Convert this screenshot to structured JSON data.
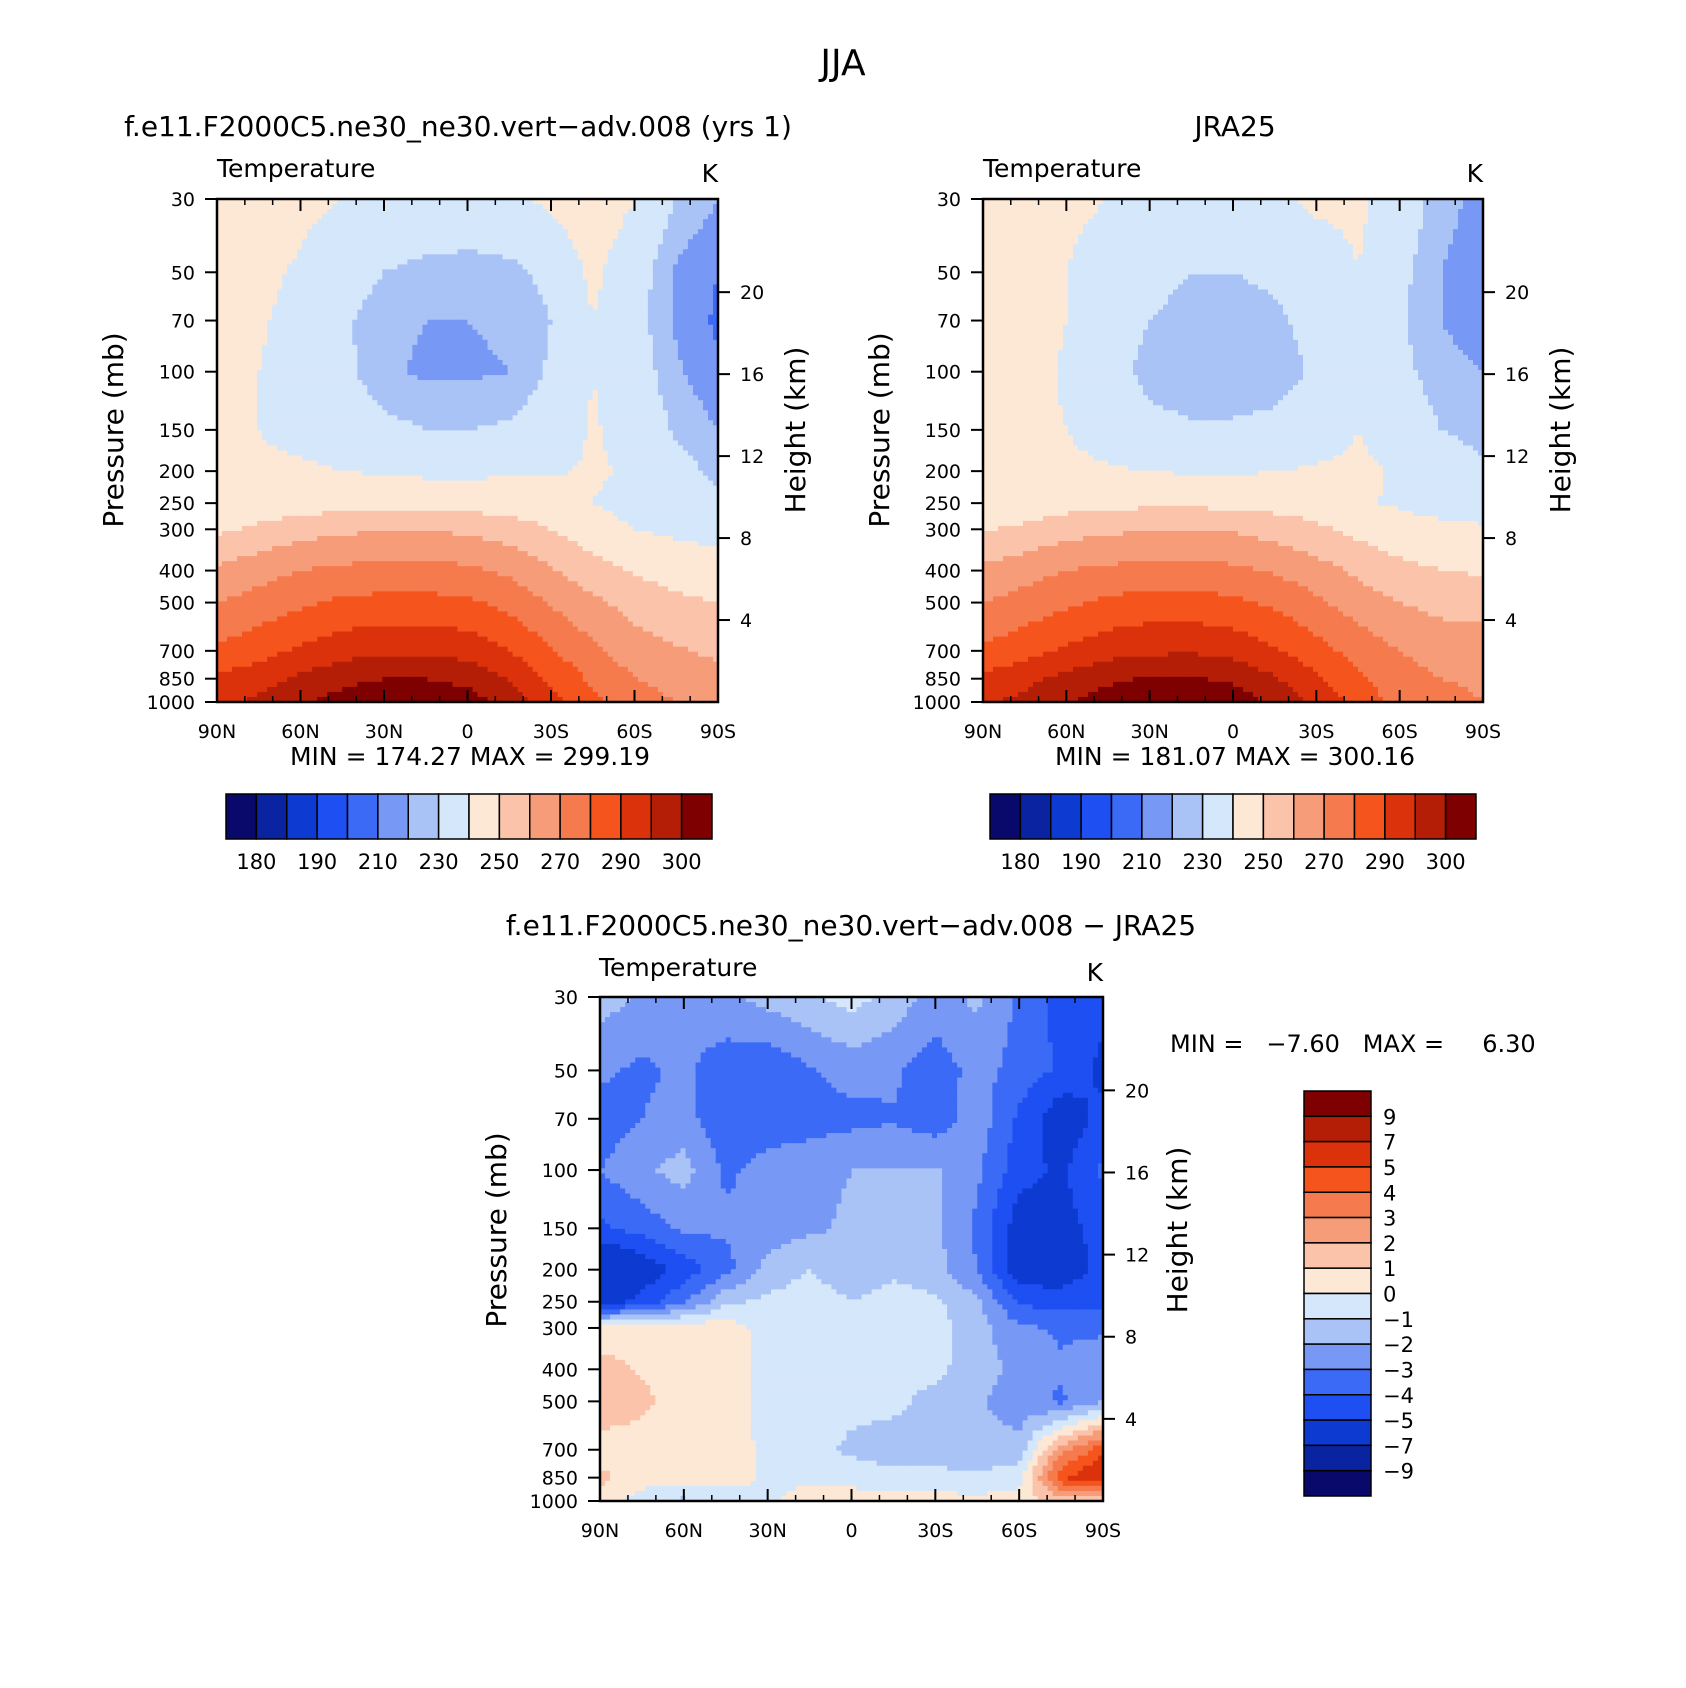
{
  "figure_title": "JJA",
  "panels": [
    {
      "title": "f.e11.F2000C5.ne30_ne30.vert−adv.008 (yrs 1)",
      "var_label": "Temperature",
      "units": "K",
      "ylabel": "Pressure (mb)",
      "y2label": "Height (km)",
      "minmax": "MIN =  174.27   MAX =  299.19"
    },
    {
      "title": "JRA25",
      "var_label": "Temperature",
      "units": "K",
      "ylabel": "Pressure (mb)",
      "y2label": "Height (km)",
      "minmax": "MIN =  181.07   MAX =  300.16"
    },
    {
      "title": "f.e11.F2000C5.ne30_ne30.vert−adv.008 − JRA25",
      "var_label": "Temperature",
      "units": "K",
      "ylabel": "Pressure (mb)",
      "y2label": "Height (km)",
      "minmax": "MIN =   −7.60   MAX =     6.30"
    }
  ],
  "chart_data": [
    {
      "type": "heatmap",
      "title": "f.e11.F2000C5.ne30_ne30.vert−adv.008 (yrs 1)",
      "subtitle": "Temperature",
      "units": "K",
      "ylabel": "Pressure (mb)",
      "y2label": "Height (km)",
      "x_ticks": [
        "90N",
        "60N",
        "30N",
        "0",
        "30S",
        "60S",
        "90S"
      ],
      "x_lat": [
        90,
        60,
        30,
        0,
        -30,
        -60,
        -90
      ],
      "y_ticks": [
        30,
        50,
        70,
        100,
        150,
        200,
        250,
        300,
        400,
        500,
        700,
        850,
        1000
      ],
      "y2_ticks": [
        4,
        8,
        12,
        16,
        20
      ],
      "ylim": [
        1000,
        30
      ],
      "y_scale": "log",
      "min": 174.27,
      "max": 299.19,
      "levels": [
        180,
        185,
        190,
        195,
        200,
        205,
        210,
        220,
        230,
        240,
        250,
        260,
        270,
        280,
        290,
        295,
        300
      ],
      "colorbar_labels": [
        180,
        190,
        210,
        230,
        250,
        270,
        290,
        300
      ],
      "field": {
        "lat": [
          90,
          75,
          60,
          45,
          30,
          15,
          0,
          -15,
          -30,
          -45,
          -60,
          -75,
          -90
        ],
        "plev": [
          30,
          50,
          70,
          100,
          150,
          200,
          250,
          300,
          400,
          500,
          700,
          850,
          1000
        ],
        "values": [
          [
            225,
            224,
            222,
            220,
            218,
            217,
            217,
            218,
            222,
            226,
            220,
            210,
            205
          ],
          [
            224,
            222,
            219,
            214,
            210,
            208,
            207,
            208,
            212,
            222,
            214,
            204,
            200
          ],
          [
            222,
            221,
            217,
            211,
            207,
            205,
            205,
            206,
            210,
            220,
            213,
            204,
            199
          ],
          [
            221,
            220,
            217,
            212,
            206,
            204,
            204,
            205,
            211,
            220,
            214,
            206,
            201
          ],
          [
            221,
            220,
            218,
            216,
            212,
            210,
            210,
            211,
            214,
            221,
            216,
            209,
            205
          ],
          [
            220,
            221,
            221,
            220,
            219,
            218,
            218,
            219,
            219,
            221,
            219,
            213,
            208
          ],
          [
            221,
            223,
            225,
            226,
            227,
            227,
            226,
            225,
            224,
            220,
            217,
            214,
            212
          ],
          [
            228,
            232,
            236,
            238,
            240,
            240,
            238,
            235,
            230,
            224,
            220,
            218,
            216
          ],
          [
            242,
            246,
            250,
            252,
            253,
            253,
            252,
            248,
            241,
            234,
            229,
            226,
            225
          ],
          [
            250,
            254,
            258,
            262,
            263,
            263,
            262,
            257,
            249,
            242,
            236,
            232,
            230
          ],
          [
            262,
            266,
            272,
            276,
            278,
            278,
            276,
            270,
            261,
            252,
            245,
            241,
            238
          ],
          [
            272,
            276,
            282,
            287,
            290,
            290,
            287,
            280,
            268,
            258,
            250,
            246,
            244
          ],
          [
            278,
            282,
            288,
            294,
            298,
            298,
            295,
            286,
            273,
            262,
            255,
            250,
            248
          ]
        ]
      }
    },
    {
      "type": "heatmap",
      "title": "JRA25",
      "subtitle": "Temperature",
      "units": "K",
      "ylabel": "Pressure (mb)",
      "y2label": "Height (km)",
      "x_ticks": [
        "90N",
        "60N",
        "30N",
        "0",
        "30S",
        "60S",
        "90S"
      ],
      "x_lat": [
        90,
        60,
        30,
        0,
        -30,
        -60,
        -90
      ],
      "y_ticks": [
        30,
        50,
        70,
        100,
        150,
        200,
        250,
        300,
        400,
        500,
        700,
        850,
        1000
      ],
      "y2_ticks": [
        4,
        8,
        12,
        16,
        20
      ],
      "ylim": [
        1000,
        30
      ],
      "y_scale": "log",
      "min": 181.07,
      "max": 300.16,
      "levels": [
        180,
        185,
        190,
        195,
        200,
        205,
        210,
        220,
        230,
        240,
        250,
        260,
        270,
        280,
        290,
        295,
        300
      ],
      "colorbar_labels": [
        180,
        190,
        210,
        230,
        250,
        270,
        290,
        300
      ],
      "field": {
        "lat": [
          90,
          75,
          60,
          45,
          30,
          15,
          0,
          -15,
          -30,
          -45,
          -60,
          -75,
          -90
        ],
        "plev": [
          30,
          50,
          70,
          100,
          150,
          200,
          250,
          300,
          400,
          500,
          700,
          850,
          1000
        ],
        "values": [
          [
            225,
            224,
            222,
            220,
            218,
            217,
            217,
            218,
            222,
            222,
            215,
            207,
            203
          ],
          [
            225,
            224,
            220,
            216,
            212,
            210,
            210,
            211,
            214,
            220,
            212,
            205,
            202
          ],
          [
            228,
            224,
            220,
            214,
            210,
            208,
            208,
            209,
            212,
            218,
            211,
            205,
            202
          ],
          [
            226,
            223,
            219,
            213,
            208,
            206,
            206,
            207,
            211,
            218,
            212,
            207,
            205
          ],
          [
            224,
            222,
            220,
            216,
            212,
            211,
            211,
            212,
            215,
            220,
            215,
            210,
            208
          ],
          [
            223,
            222,
            222,
            221,
            220,
            219,
            219,
            220,
            221,
            222,
            219,
            214,
            211
          ],
          [
            223,
            224,
            226,
            227,
            228,
            228,
            227,
            226,
            225,
            221,
            219,
            217,
            216
          ],
          [
            229,
            232,
            236,
            238,
            240,
            240,
            239,
            236,
            232,
            227,
            223,
            222,
            221
          ],
          [
            242,
            246,
            250,
            252,
            253,
            253,
            252,
            249,
            244,
            238,
            233,
            230,
            229
          ],
          [
            250,
            254,
            258,
            262,
            264,
            264,
            262,
            258,
            252,
            245,
            240,
            237,
            236
          ],
          [
            262,
            266,
            272,
            276,
            278,
            279,
            277,
            271,
            264,
            256,
            250,
            246,
            245
          ],
          [
            272,
            277,
            283,
            288,
            291,
            291,
            288,
            281,
            272,
            262,
            254,
            250,
            249
          ],
          [
            278,
            283,
            289,
            295,
            299,
            299,
            296,
            288,
            278,
            266,
            256,
            252,
            250
          ]
        ]
      }
    },
    {
      "type": "heatmap",
      "title": "f.e11.F2000C5.ne30_ne30.vert−adv.008 − JRA25",
      "subtitle": "Temperature",
      "units": "K",
      "ylabel": "Pressure (mb)",
      "y2label": "Height (km)",
      "x_ticks": [
        "90N",
        "60N",
        "30N",
        "0",
        "30S",
        "60S",
        "90S"
      ],
      "x_lat": [
        90,
        60,
        30,
        0,
        -30,
        -60,
        -90
      ],
      "y_ticks": [
        30,
        50,
        70,
        100,
        150,
        200,
        250,
        300,
        400,
        500,
        700,
        850,
        1000
      ],
      "y2_ticks": [
        4,
        8,
        12,
        16,
        20
      ],
      "ylim": [
        1000,
        30
      ],
      "y_scale": "log",
      "min": -7.6,
      "max": 6.3,
      "levels": [
        -9,
        -7,
        -5,
        -4,
        -3,
        -2,
        -1,
        0,
        1,
        2,
        3,
        4,
        5,
        7,
        9
      ],
      "colorbar_labels": [
        9,
        7,
        5,
        4,
        3,
        2,
        1,
        0,
        -1,
        -2,
        -3,
        -4,
        -5,
        -7,
        -9
      ],
      "field": {
        "lat": [
          90,
          75,
          60,
          45,
          30,
          15,
          0,
          -15,
          -30,
          -45,
          -60,
          -75,
          -90
        ],
        "plev": [
          30,
          50,
          70,
          100,
          150,
          200,
          250,
          300,
          400,
          500,
          700,
          850,
          1000
        ],
        "values": [
          [
            -1.5,
            -2.2,
            -2.6,
            -2.2,
            -1.6,
            -1.2,
            -0.6,
            -1.4,
            -2.4,
            -1.8,
            -3.2,
            -4.3,
            -4.6
          ],
          [
            -2.8,
            -3.2,
            -2.8,
            -3.6,
            -3.8,
            -3.1,
            -2.6,
            -2.8,
            -3.6,
            -2.6,
            -3.4,
            -4.2,
            -5.3
          ],
          [
            -3.6,
            -3.0,
            -2.6,
            -3.8,
            -3.6,
            -3.4,
            -3.3,
            -3.1,
            -3.6,
            -2.4,
            -4.2,
            -5.8,
            -4.6
          ],
          [
            -3.0,
            -2.2,
            -1.6,
            -3.2,
            -2.6,
            -2.4,
            -2.0,
            -2.0,
            -1.9,
            -2.8,
            -4.6,
            -5.2,
            -3.8
          ],
          [
            -4.2,
            -3.6,
            -2.8,
            -2.8,
            -2.6,
            -2.2,
            -1.8,
            -1.8,
            -1.8,
            -3.2,
            -5.6,
            -5.4,
            -4.6
          ],
          [
            -6.8,
            -5.8,
            -4.6,
            -3.4,
            -1.6,
            -1.0,
            -1.6,
            -1.2,
            -1.6,
            -3.0,
            -5.8,
            -5.8,
            -4.6
          ],
          [
            -5.8,
            -4.6,
            -3.2,
            -1.2,
            -0.8,
            -0.5,
            -1.0,
            -0.6,
            -0.8,
            -1.8,
            -4.2,
            -4.4,
            -4.2
          ],
          [
            0.4,
            0.6,
            0.6,
            0.6,
            -0.5,
            -0.6,
            -0.8,
            -0.5,
            -0.6,
            -1.6,
            -2.8,
            -3.2,
            -3.2
          ],
          [
            1.4,
            0.9,
            0.6,
            0.6,
            -0.4,
            -0.4,
            -0.8,
            -0.6,
            -0.7,
            -1.6,
            -2.2,
            -2.8,
            -2.2
          ],
          [
            1.6,
            1.2,
            0.6,
            0.7,
            -0.4,
            -0.6,
            -0.7,
            -0.7,
            -1.4,
            -1.8,
            -2.6,
            -3.2,
            -2.0
          ],
          [
            0.6,
            0.6,
            0.6,
            0.8,
            -0.4,
            -0.6,
            -1.2,
            -1.6,
            -1.6,
            -1.8,
            -1.6,
            2.6,
            4.6
          ],
          [
            1.2,
            0.6,
            0.4,
            0.6,
            -0.2,
            -0.2,
            -0.4,
            -0.6,
            -0.6,
            -0.8,
            -0.4,
            4.8,
            6.3
          ],
          [
            0.6,
            -0.6,
            -1.2,
            -0.8,
            -0.2,
            0.4,
            0.5,
            0.4,
            0.4,
            0.3,
            0.4,
            1.4,
            0.4
          ]
        ]
      }
    }
  ]
}
